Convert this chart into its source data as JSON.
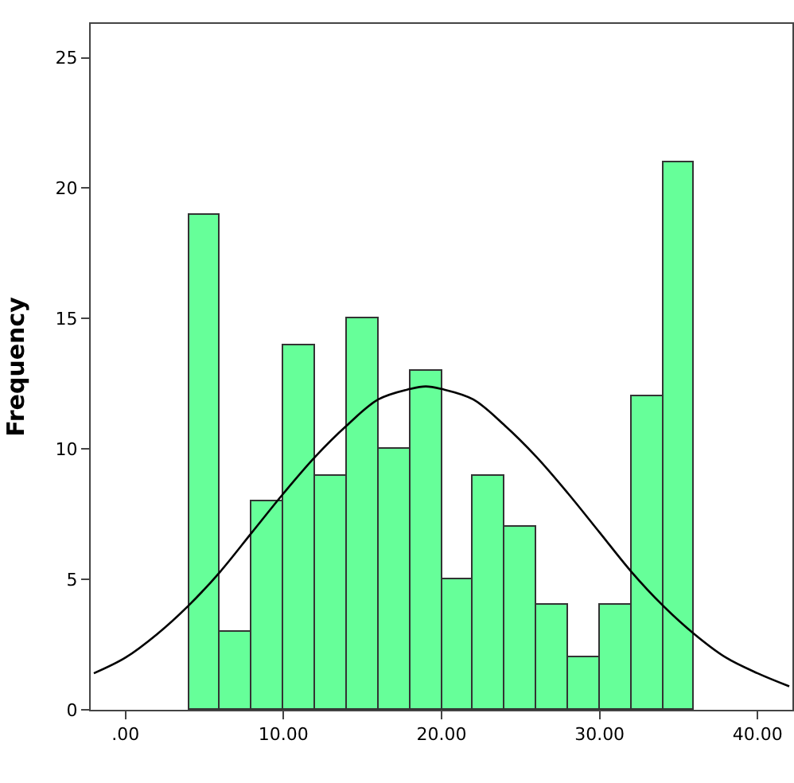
{
  "chart_data": {
    "type": "histogram",
    "ylabel": "Frequency",
    "bins": [
      4,
      6,
      8,
      10,
      12,
      14,
      16,
      18,
      20,
      22,
      24,
      26,
      28,
      30,
      32,
      34,
      36
    ],
    "values": [
      19,
      3,
      8,
      14,
      9,
      15,
      10,
      13,
      5,
      9,
      7,
      4,
      2,
      4,
      12,
      21
    ],
    "color": "#66ff99",
    "series": [
      {
        "type": "line",
        "color": "#000000",
        "x": [
          -2,
          0,
          2,
          4,
          6,
          8,
          10,
          12,
          14,
          16,
          18,
          19,
          20,
          22,
          24,
          26,
          28,
          30,
          32,
          34,
          36,
          38,
          40,
          42
        ],
        "values": [
          1.4,
          2.0,
          2.9,
          4.0,
          5.3,
          6.8,
          8.3,
          9.7,
          10.9,
          11.9,
          12.3,
          12.4,
          12.3,
          11.9,
          10.9,
          9.7,
          8.3,
          6.8,
          5.3,
          4.0,
          2.9,
          2.0,
          1.4,
          0.9
        ]
      }
    ],
    "xlim": [
      -2.2,
      42.2
    ],
    "ylim": [
      0,
      26.3
    ],
    "xticks": [
      {
        "value": 0,
        "label": ".00"
      },
      {
        "value": 10,
        "label": "10.00"
      },
      {
        "value": 20,
        "label": "20.00"
      },
      {
        "value": 30,
        "label": "30.00"
      },
      {
        "value": 40,
        "label": "40.00"
      }
    ],
    "yticks": [
      0,
      5,
      10,
      15,
      20,
      25
    ]
  }
}
